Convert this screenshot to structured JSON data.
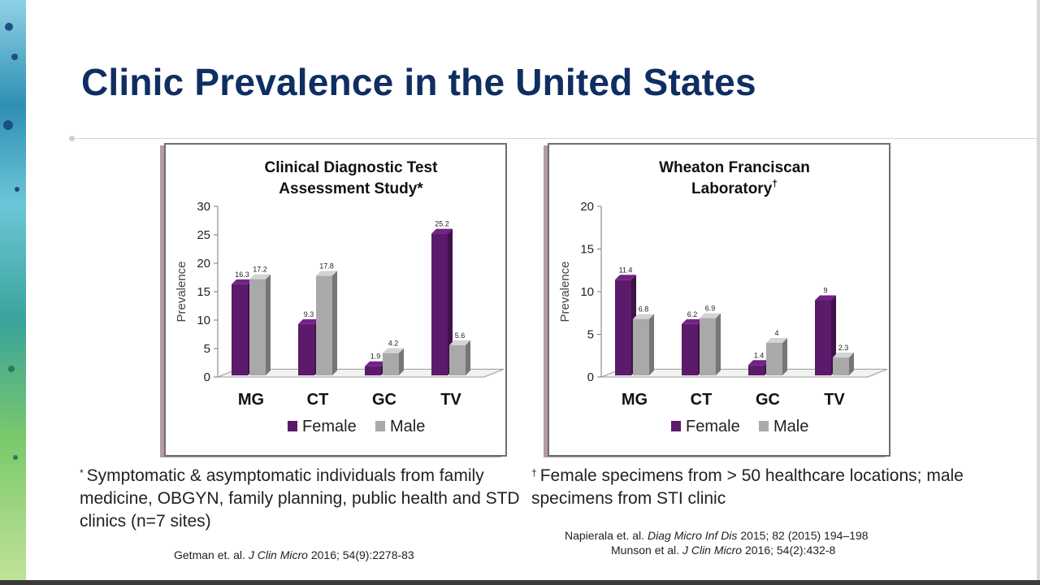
{
  "slide": {
    "title": "Clinic Prevalence in the United States"
  },
  "colors": {
    "female": "#5c1a6b",
    "male": "#a9a9a9",
    "title": "#0f2e62"
  },
  "chart_data": [
    {
      "type": "bar",
      "title_lines": [
        "Clinical Diagnostic Test",
        "Assessment Study*"
      ],
      "ylabel": "Prevalence",
      "xlabel": "",
      "ylim": [
        0,
        30
      ],
      "yticks": [
        0,
        5,
        10,
        15,
        20,
        25,
        30
      ],
      "categories": [
        "MG",
        "CT",
        "GC",
        "TV"
      ],
      "series": [
        {
          "name": "Female",
          "values": [
            16.3,
            9.3,
            1.9,
            25.2
          ],
          "labels": [
            "16.3",
            "9.3",
            "1.9",
            "25.2"
          ]
        },
        {
          "name": "Male",
          "values": [
            17.2,
            17.8,
            4.2,
            5.6
          ],
          "labels": [
            "17.2",
            "17.8",
            "4.2",
            "5.6"
          ]
        }
      ],
      "legend": [
        "Female",
        "Male"
      ],
      "legend_position": "bottom"
    },
    {
      "type": "bar",
      "title_lines": [
        "Wheaton Franciscan",
        "Laboratory"
      ],
      "title_mark": "†",
      "ylabel": "Prevalence",
      "xlabel": "",
      "ylim": [
        0,
        20
      ],
      "yticks": [
        0,
        5,
        10,
        15,
        20
      ],
      "categories": [
        "MG",
        "CT",
        "GC",
        "TV"
      ],
      "series": [
        {
          "name": "Female",
          "values": [
            11.4,
            6.2,
            1.4,
            9
          ],
          "labels": [
            "11.4",
            "6.2",
            "1.4",
            "9"
          ]
        },
        {
          "name": "Male",
          "values": [
            6.8,
            6.9,
            4,
            2.3
          ],
          "labels": [
            "6.8",
            "6.9",
            "4",
            "2.3"
          ]
        }
      ],
      "legend": [
        "Female",
        "Male"
      ],
      "legend_position": "bottom"
    }
  ],
  "notes": {
    "left_mark": "*",
    "left_text": "Symptomatic & asymptomatic individuals from family medicine, OBGYN, family planning, public health and STD clinics (n=7 sites)",
    "right_mark": "†",
    "right_text": "Female specimens from > 50 healthcare locations; male specimens from STI clinic"
  },
  "citations": {
    "left": {
      "authors": "Getman et. al.",
      "journal": "J Clin Micro",
      "details": "2016; 54(9):2278-83"
    },
    "right_1": {
      "authors": "Napierala et. al.",
      "journal": "Diag Micro Inf Dis",
      "details": "2015; 82 (2015) 194–198"
    },
    "right_2": {
      "authors": "Munson et al.",
      "journal": "J Clin Micro",
      "details": "2016; 54(2):432-8"
    }
  }
}
